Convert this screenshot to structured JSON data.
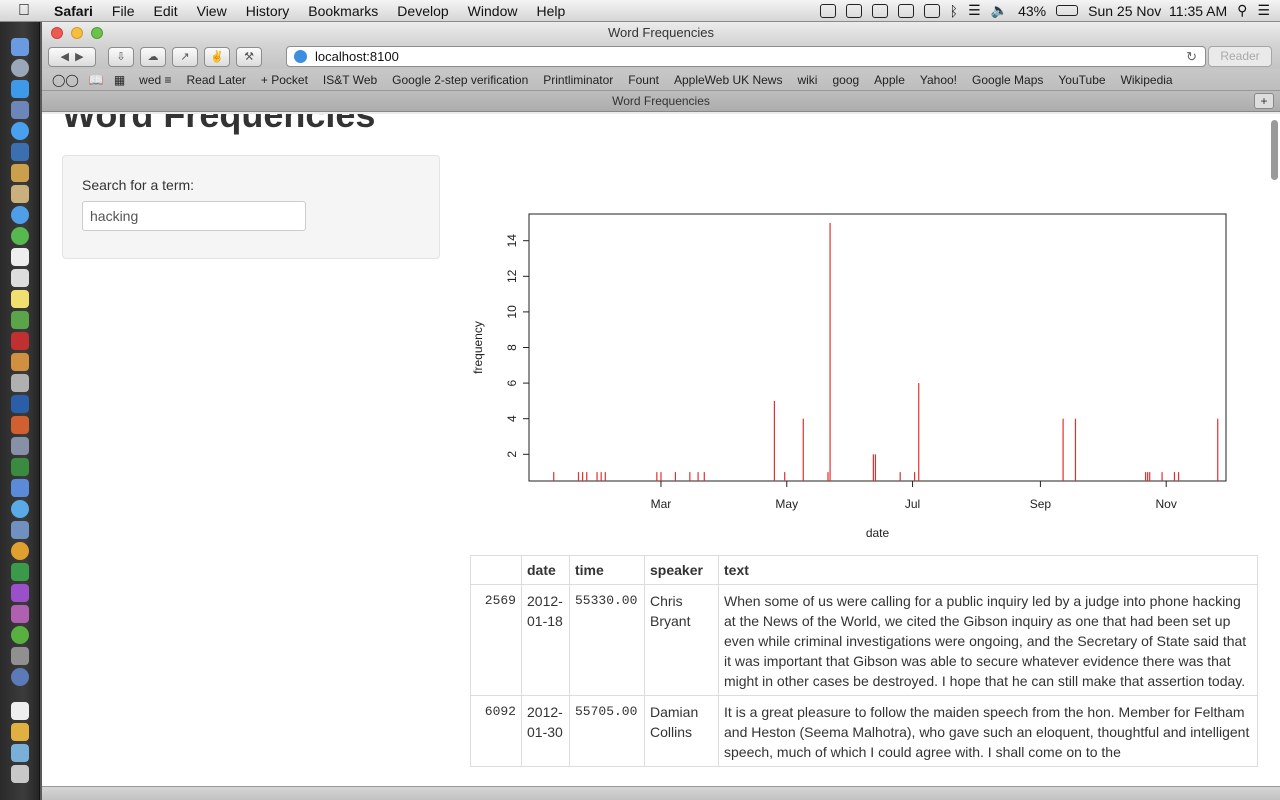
{
  "menubar": {
    "app": "Safari",
    "items": [
      "File",
      "Edit",
      "View",
      "History",
      "Bookmarks",
      "Develop",
      "Window",
      "Help"
    ],
    "battery": "43%",
    "clock": "Sun 25 Nov  11:35 AM"
  },
  "window": {
    "title": "Word Frequencies"
  },
  "toolbar": {
    "url": "localhost:8100",
    "reader": "Reader"
  },
  "bookmarks": [
    "wed ≡",
    "Read Later",
    "+ Pocket",
    "IS&T Web",
    "Google 2-step verification",
    "Printliminator",
    "Fount",
    "AppleWeb UK News",
    "wiki",
    "goog",
    "Apple",
    "Yahoo!",
    "Google Maps",
    "YouTube",
    "Wikipedia"
  ],
  "tab": {
    "label": "Word Frequencies"
  },
  "page": {
    "title": "Word Frequencies",
    "search": {
      "label": "Search for a term:",
      "value": "hacking"
    }
  },
  "chart_data": {
    "type": "bar",
    "xlabel": "date",
    "ylabel": "frequency",
    "ylim": [
      0.5,
      15.5
    ],
    "yticks": [
      2,
      4,
      6,
      8,
      10,
      12,
      14
    ],
    "xticks": [
      {
        "label": "Mar",
        "date": "2012-03-01"
      },
      {
        "label": "May",
        "date": "2012-05-01"
      },
      {
        "label": "Jul",
        "date": "2012-07-01"
      },
      {
        "label": "Sep",
        "date": "2012-09-01"
      },
      {
        "label": "Nov",
        "date": "2012-11-01"
      }
    ],
    "xlim": [
      "2011-12-28",
      "2012-11-30"
    ],
    "color": "#e0302f",
    "points": [
      {
        "date": "2012-01-09",
        "value": 1
      },
      {
        "date": "2012-01-21",
        "value": 1
      },
      {
        "date": "2012-01-23",
        "value": 1
      },
      {
        "date": "2012-01-25",
        "value": 1
      },
      {
        "date": "2012-01-30",
        "value": 1
      },
      {
        "date": "2012-02-01",
        "value": 1
      },
      {
        "date": "2012-02-03",
        "value": 1
      },
      {
        "date": "2012-02-28",
        "value": 1
      },
      {
        "date": "2012-03-01",
        "value": 1
      },
      {
        "date": "2012-03-08",
        "value": 1
      },
      {
        "date": "2012-03-15",
        "value": 1
      },
      {
        "date": "2012-03-19",
        "value": 1
      },
      {
        "date": "2012-03-22",
        "value": 1
      },
      {
        "date": "2012-04-25",
        "value": 5
      },
      {
        "date": "2012-04-30",
        "value": 1
      },
      {
        "date": "2012-05-09",
        "value": 4
      },
      {
        "date": "2012-05-21",
        "value": 1
      },
      {
        "date": "2012-05-22",
        "value": 15
      },
      {
        "date": "2012-06-12",
        "value": 2
      },
      {
        "date": "2012-06-13",
        "value": 2
      },
      {
        "date": "2012-06-25",
        "value": 1
      },
      {
        "date": "2012-07-02",
        "value": 1
      },
      {
        "date": "2012-07-04",
        "value": 6
      },
      {
        "date": "2012-09-12",
        "value": 4
      },
      {
        "date": "2012-09-18",
        "value": 4
      },
      {
        "date": "2012-10-22",
        "value": 1
      },
      {
        "date": "2012-10-23",
        "value": 1
      },
      {
        "date": "2012-10-24",
        "value": 1
      },
      {
        "date": "2012-10-30",
        "value": 1
      },
      {
        "date": "2012-11-05",
        "value": 1
      },
      {
        "date": "2012-11-07",
        "value": 1
      },
      {
        "date": "2012-11-26",
        "value": 4
      }
    ]
  },
  "table": {
    "headers": [
      "",
      "date",
      "time",
      "speaker",
      "text"
    ],
    "rows": [
      {
        "id": "2569",
        "date": "2012-01-18",
        "time": "55330.00",
        "speaker": "Chris Bryant",
        "text": "When some of us were calling for a public inquiry led by a judge into phone hacking at the News of the World, we cited the Gibson inquiry as one that had been set up even while criminal investigations were ongoing, and the Secretary of State said that it was important that Gibson was able to secure whatever evidence there was that might in other cases be destroyed. I hope that he can still make that assertion today."
      },
      {
        "id": "6092",
        "date": "2012-01-30",
        "time": "55705.00",
        "speaker": "Damian Collins",
        "text": "It is a great pleasure to follow the maiden speech from the hon. Member for Feltham and Heston (Seema Malhotra), who gave such an eloquent, thoughtful and intelligent speech, much of which I could agree with. I shall come on to the"
      }
    ]
  }
}
